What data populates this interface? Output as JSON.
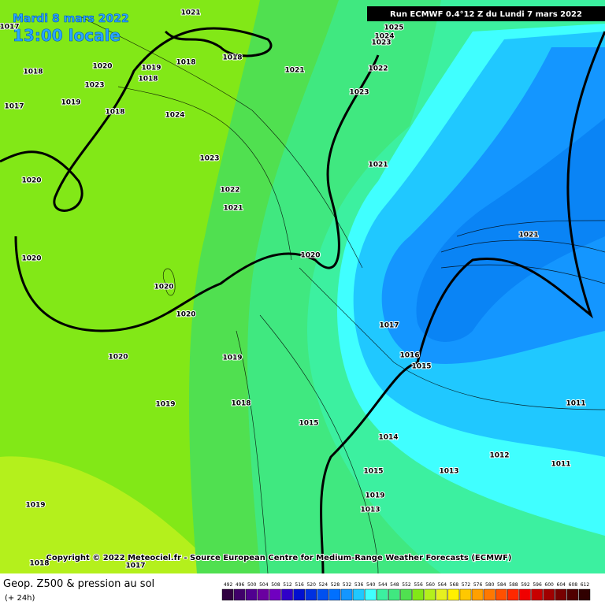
{
  "header": {
    "date": "Mardi 8 mars 2022",
    "time": "13:00 locale",
    "run": "Run ECMWF 0.4°12 Z du Lundi 7 mars 2022"
  },
  "copyright": "Copyright © 2022 Meteociel.fr - Source European Centre for Medium-Range Weather Forecasts (ECMWF)",
  "footer": {
    "title": "Geop. Z500 & pression au sol",
    "lead": "(+ 24h)"
  },
  "pressure_labels": [
    1017,
    1021,
    1018,
    1020,
    1019,
    1018,
    1018,
    1023,
    1018,
    1017,
    1019,
    1018,
    1024,
    1021,
    1025,
    1024,
    1023,
    1022,
    1023,
    1023,
    1021,
    1020,
    1022,
    1021,
    1021,
    1020,
    1020,
    1020,
    1020,
    1017,
    1016,
    1015,
    1020,
    1019,
    1011,
    1018,
    1019,
    1015,
    1014,
    1012,
    1011,
    1015,
    1013,
    1019,
    1013,
    1019,
    1018,
    1017
  ],
  "scale": {
    "values": [
      492,
      496,
      500,
      504,
      508,
      512,
      516,
      520,
      524,
      528,
      532,
      536,
      540,
      544,
      548,
      552,
      556,
      560,
      564,
      568,
      572,
      576,
      580,
      584,
      588,
      592,
      596,
      600,
      604,
      608,
      612
    ],
    "colors": [
      "#300040",
      "#40006a",
      "#500090",
      "#6a00a0",
      "#7000c0",
      "#3000c8",
      "#0010d0",
      "#0030e0",
      "#0050f0",
      "#0070ff",
      "#1496ff",
      "#20c8ff",
      "#40ffff",
      "#3cf0a0",
      "#40e880",
      "#50e050",
      "#82e817",
      "#b4f01c",
      "#e6f020",
      "#fff000",
      "#ffc800",
      "#ffa000",
      "#ff7800",
      "#ff5000",
      "#ff2800",
      "#f00000",
      "#c80000",
      "#a00000",
      "#780000",
      "#500000",
      "#300000"
    ]
  }
}
